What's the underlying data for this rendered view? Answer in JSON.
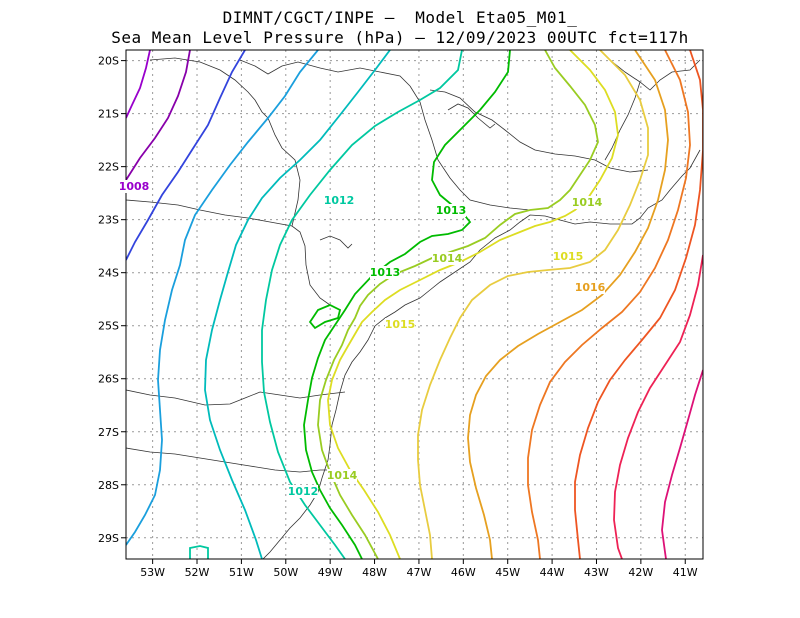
{
  "title": {
    "line1": "DIMNT/CGCT/INPE —  Model Eta05_M01_",
    "line2": "Sea Mean Level Pressure (hPa) — 12/09/2023 00UTC fct=117h"
  },
  "chart_data": {
    "type": "contour",
    "variable": "Sea Mean Level Pressure (hPa)",
    "x_range_deg_w": [
      53.6,
      40.6
    ],
    "y_range_deg_s": [
      19.8,
      29.4
    ],
    "lon_ticks": [
      "53W",
      "52W",
      "51W",
      "50W",
      "49W",
      "48W",
      "47W",
      "46W",
      "45W",
      "44W",
      "43W",
      "42W",
      "41W"
    ],
    "lat_ticks": [
      "20S",
      "21S",
      "22S",
      "23S",
      "24S",
      "25S",
      "26S",
      "27S",
      "28S",
      "29S"
    ],
    "contour_labels": [
      {
        "text": "1008",
        "color": "#9900cc"
      },
      {
        "text": "1012",
        "color": "#00c8a0"
      },
      {
        "text": "1013",
        "color": "#00bb00"
      },
      {
        "text": "1013",
        "color": "#00bb00"
      },
      {
        "text": "1014",
        "color": "#99cc22"
      },
      {
        "text": "1014",
        "color": "#99cc22"
      },
      {
        "text": "1014",
        "color": "#99cc22"
      },
      {
        "text": "1015",
        "color": "#dddd22"
      },
      {
        "text": "1015",
        "color": "#dddd22"
      },
      {
        "text": "1016",
        "color": "#e6a020"
      },
      {
        "text": "1012",
        "color": "#00c8a0"
      }
    ]
  }
}
